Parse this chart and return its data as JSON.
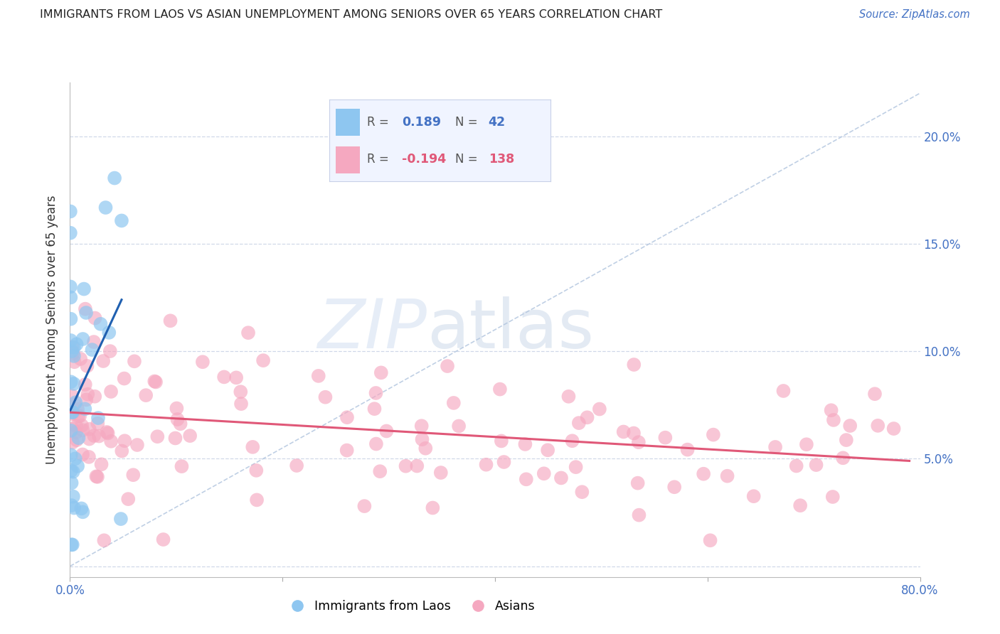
{
  "title": "IMMIGRANTS FROM LAOS VS ASIAN UNEMPLOYMENT AMONG SENIORS OVER 65 YEARS CORRELATION CHART",
  "source": "Source: ZipAtlas.com",
  "ylabel": "Unemployment Among Seniors over 65 years",
  "xlim": [
    0,
    0.8
  ],
  "ylim": [
    -0.005,
    0.225
  ],
  "ytick_positions": [
    0.0,
    0.05,
    0.1,
    0.15,
    0.2
  ],
  "ytick_labels": [
    "",
    "5.0%",
    "10.0%",
    "15.0%",
    "20.0%"
  ],
  "xtick_positions": [
    0.0,
    0.2,
    0.4,
    0.6,
    0.8
  ],
  "xtick_labels": [
    "0.0%",
    "",
    "",
    "",
    "80.0%"
  ],
  "R_laos": 0.189,
  "N_laos": 42,
  "R_asian": -0.194,
  "N_asian": 138,
  "color_laos": "#8ec6f0",
  "color_asian": "#f5a8c0",
  "line_color_laos": "#2060b0",
  "line_color_asian": "#e05878",
  "axis_color": "#4472c4",
  "grid_color": "#d0d8e8",
  "legend_bg": "#f0f4ff",
  "legend_border": "#c8d0e8"
}
